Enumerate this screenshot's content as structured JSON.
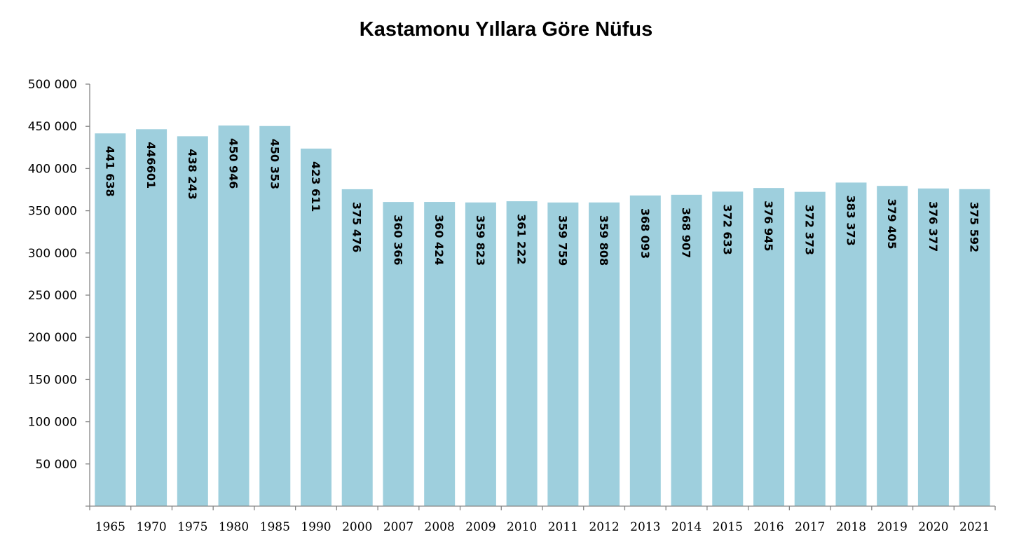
{
  "chart_data": {
    "type": "bar",
    "title": "Kastamonu Yıllara Göre Nüfus",
    "xlabel": "",
    "ylabel": "",
    "ylim": [
      0,
      500000
    ],
    "yticks": [
      50000,
      100000,
      150000,
      200000,
      250000,
      300000,
      350000,
      400000,
      450000,
      500000
    ],
    "ytick_labels": [
      "50 000",
      "100 000",
      "150 000",
      "200 000",
      "250 000",
      "300 000",
      "350 000",
      "400 000",
      "450 000",
      "500 000"
    ],
    "categories": [
      "1965",
      "1970",
      "1975",
      "1980",
      "1985",
      "1990",
      "2000",
      "2007",
      "2008",
      "2009",
      "2010",
      "2011",
      "2012",
      "2013",
      "2014",
      "2015",
      "2016",
      "2017",
      "2018",
      "2019",
      "2020",
      "2021"
    ],
    "values": [
      441638,
      446601,
      438243,
      450946,
      450353,
      423611,
      375476,
      360366,
      360424,
      359823,
      361222,
      359759,
      359808,
      368093,
      368907,
      372633,
      376945,
      372373,
      383373,
      379405,
      376377,
      375592
    ],
    "data_labels": [
      "441 638",
      "446601",
      "438 243",
      "450 946",
      "450 353",
      "423 611",
      "375 476",
      "360 366",
      "360 424",
      "359 823",
      "361 222",
      "359 759",
      "359 808",
      "368 093",
      "368 907",
      "372 633",
      "376 945",
      "372 373",
      "383 373",
      "379 405",
      "376 377",
      "375 592"
    ],
    "bar_color": "#9ecfdd",
    "axis_color": "#868686",
    "grid": false,
    "legend": "none"
  }
}
